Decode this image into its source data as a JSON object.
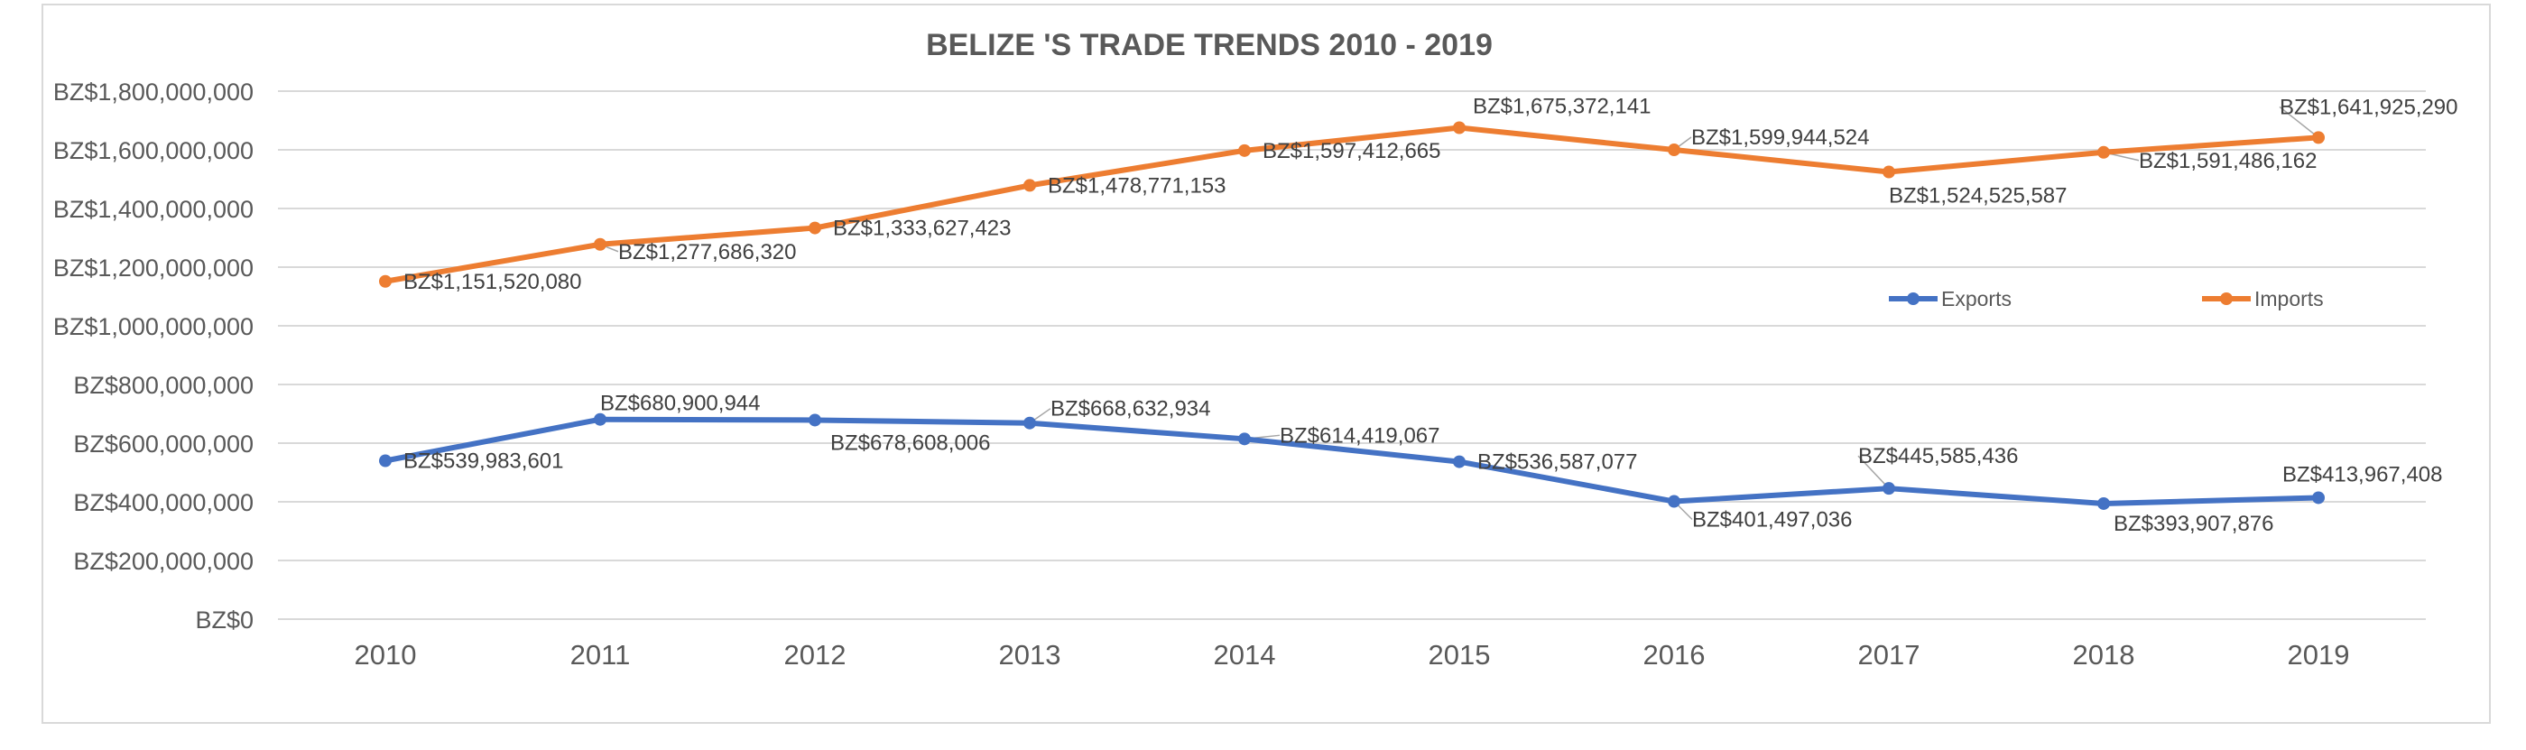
{
  "chart_data": {
    "type": "line",
    "title": "BELIZE 'S TRADE TRENDS 2010 - 2019",
    "xlabel": "",
    "ylabel": "",
    "x": [
      "2010",
      "2011",
      "2012",
      "2013",
      "2014",
      "2015",
      "2016",
      "2017",
      "2018",
      "2019"
    ],
    "ylim": [
      0,
      1800000000
    ],
    "yticks": [
      0,
      200000000,
      400000000,
      600000000,
      800000000,
      1000000000,
      1200000000,
      1400000000,
      1600000000,
      1800000000
    ],
    "ytick_labels": [
      "BZ$0",
      "BZ$200,000,000",
      "BZ$400,000,000",
      "BZ$600,000,000",
      "BZ$800,000,000",
      "BZ$1,000,000,000",
      "BZ$1,200,000,000",
      "BZ$1,400,000,000",
      "BZ$1,600,000,000",
      "BZ$1,800,000,000"
    ],
    "grid": true,
    "legend_position": "right",
    "series": [
      {
        "name": "Exports",
        "color": "#4472c4",
        "values": [
          539983601,
          680900944,
          678608006,
          668632934,
          614419067,
          536587077,
          401497036,
          445585436,
          393907876,
          413967408
        ],
        "labels": [
          "BZ$539,983,601",
          "BZ$680,900,944",
          "BZ$678,608,006",
          "BZ$668,632,934",
          "BZ$614,419,067",
          "BZ$536,587,077",
          "BZ$401,497,036",
          "BZ$445,585,436",
          "BZ$393,907,876",
          "BZ$413,967,408"
        ]
      },
      {
        "name": "Imports",
        "color": "#ed7d31",
        "values": [
          1151520080,
          1277686320,
          1333627423,
          1478771153,
          1597412665,
          1675372141,
          1599944524,
          1524525587,
          1591486162,
          1641925290
        ],
        "labels": [
          "BZ$1,151,520,080",
          "BZ$1,277,686,320",
          "BZ$1,333,627,423",
          "BZ$1,478,771,153",
          "BZ$1,597,412,665",
          "BZ$1,675,372,141",
          "BZ$1,599,944,524",
          "BZ$1,524,525,587",
          "BZ$1,591,486,162",
          "BZ$1,641,925,290"
        ]
      }
    ],
    "gridline_color": "#d9d9d9",
    "leader_line_color": "#a6a6a6"
  }
}
